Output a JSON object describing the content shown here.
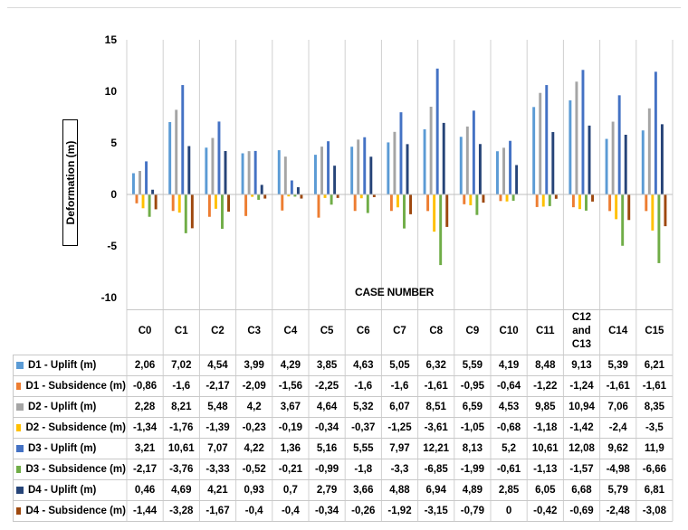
{
  "chart_data": {
    "type": "bar",
    "ylabel": "Deformation (m)",
    "xlabel": "CASE NUMBER",
    "ylim": [
      -10,
      15
    ],
    "yticks": [
      15,
      10,
      5,
      0,
      -5,
      -10
    ],
    "grid": false,
    "legend": "table-below",
    "categories": [
      "C0",
      "C1",
      "C2",
      "C3",
      "C4",
      "C5",
      "C6",
      "C7",
      "C8",
      "C9",
      "C10",
      "C11",
      "C12 and C13",
      "C14",
      "C15"
    ],
    "series": [
      {
        "name": "D1 - Uplift (m)",
        "color": "#5b9bd5",
        "values": [
          2.06,
          7.02,
          4.54,
          3.99,
          4.29,
          3.85,
          4.63,
          5.05,
          6.32,
          5.59,
          4.19,
          8.48,
          9.13,
          5.39,
          6.21
        ],
        "labels": [
          "2,06",
          "7,02",
          "4,54",
          "3,99",
          "4,29",
          "3,85",
          "4,63",
          "5,05",
          "6,32",
          "5,59",
          "4,19",
          "8,48",
          "9,13",
          "5,39",
          "6,21"
        ]
      },
      {
        "name": "D1 - Subsidence (m)",
        "color": "#ed7d31",
        "values": [
          -0.86,
          -1.6,
          -2.17,
          -2.09,
          -1.56,
          -2.25,
          -1.6,
          -1.6,
          -1.61,
          -0.95,
          -0.64,
          -1.22,
          -1.24,
          -1.61,
          -1.61
        ],
        "labels": [
          "-0,86",
          "-1,6",
          "-2,17",
          "-2,09",
          "-1,56",
          "-2,25",
          "-1,6",
          "-1,6",
          "-1,61",
          "-0,95",
          "-0,64",
          "-1,22",
          "-1,24",
          "-1,61",
          "-1,61"
        ]
      },
      {
        "name": "D2 - Uplift (m)",
        "color": "#a5a5a5",
        "values": [
          2.28,
          8.21,
          5.48,
          4.2,
          3.67,
          4.64,
          5.32,
          6.07,
          8.51,
          6.59,
          4.53,
          9.85,
          10.94,
          7.06,
          8.35
        ],
        "labels": [
          "2,28",
          "8,21",
          "5,48",
          "4,2",
          "3,67",
          "4,64",
          "5,32",
          "6,07",
          "8,51",
          "6,59",
          "4,53",
          "9,85",
          "10,94",
          "7,06",
          "8,35"
        ]
      },
      {
        "name": "D2 - Subsidence (m)",
        "color": "#ffc000",
        "values": [
          -1.34,
          -1.76,
          -1.39,
          -0.23,
          -0.19,
          -0.34,
          -0.37,
          -1.25,
          -3.61,
          -1.05,
          -0.68,
          -1.18,
          -1.42,
          -2.4,
          -3.5
        ],
        "labels": [
          "-1,34",
          "-1,76",
          "-1,39",
          "-0,23",
          "-0,19",
          "-0,34",
          "-0,37",
          "-1,25",
          "-3,61",
          "-1,05",
          "-0,68",
          "-1,18",
          "-1,42",
          "-2,4",
          "-3,5"
        ]
      },
      {
        "name": "D3 - Uplift (m)",
        "color": "#4472c4",
        "values": [
          3.21,
          10.61,
          7.07,
          4.22,
          1.36,
          5.16,
          5.55,
          7.97,
          12.21,
          8.13,
          5.2,
          10.61,
          12.08,
          9.62,
          11.9
        ],
        "labels": [
          "3,21",
          "10,61",
          "7,07",
          "4,22",
          "1,36",
          "5,16",
          "5,55",
          "7,97",
          "12,21",
          "8,13",
          "5,2",
          "10,61",
          "12,08",
          "9,62",
          "11,9"
        ]
      },
      {
        "name": "D3 - Subsidence (m)",
        "color": "#70ad47",
        "values": [
          -2.17,
          -3.76,
          -3.33,
          -0.52,
          -0.21,
          -0.99,
          -1.8,
          -3.3,
          -6.85,
          -1.99,
          -0.61,
          -1.13,
          -1.57,
          -4.98,
          -6.66
        ],
        "labels": [
          "-2,17",
          "-3,76",
          "-3,33",
          "-0,52",
          "-0,21",
          "-0,99",
          "-1,8",
          "-3,3",
          "-6,85",
          "-1,99",
          "-0,61",
          "-1,13",
          "-1,57",
          "-4,98",
          "-6,66"
        ]
      },
      {
        "name": "D4 - Uplift (m)",
        "color": "#264478",
        "values": [
          0.46,
          4.69,
          4.21,
          0.93,
          0.7,
          2.79,
          3.66,
          4.88,
          6.94,
          4.89,
          2.85,
          6.05,
          6.68,
          5.79,
          6.81
        ],
        "labels": [
          "0,46",
          "4,69",
          "4,21",
          "0,93",
          "0,7",
          "2,79",
          "3,66",
          "4,88",
          "6,94",
          "4,89",
          "2,85",
          "6,05",
          "6,68",
          "5,79",
          "6,81"
        ]
      },
      {
        "name": "D4 - Subsidence (m)",
        "color": "#9e480e",
        "values": [
          -1.44,
          -3.28,
          -1.67,
          -0.4,
          -0.4,
          -0.34,
          -0.26,
          -1.92,
          -3.15,
          -0.79,
          0,
          -0.42,
          -0.69,
          -2.48,
          -3.08
        ],
        "labels": [
          "-1,44",
          "-3,28",
          "-1,67",
          "-0,4",
          "-0,4",
          "-0,34",
          "-0,26",
          "-1,92",
          "-3,15",
          "-0,79",
          "0",
          "-0,42",
          "-0,69",
          "-2,48",
          "-3,08"
        ]
      }
    ]
  }
}
